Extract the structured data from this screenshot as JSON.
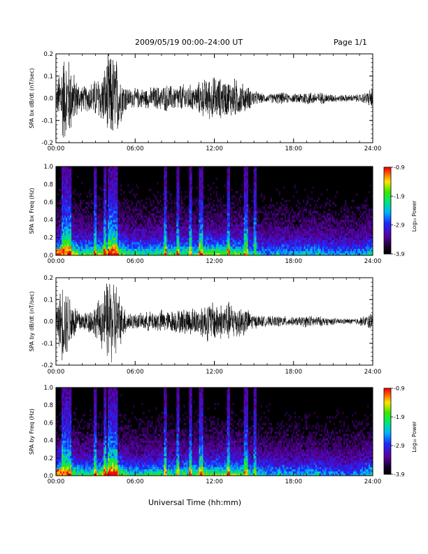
{
  "header": {
    "title": "2009/05/19  00:00–24:00 UT",
    "page": "Page 1/1"
  },
  "x_axis_label": "Universal Time (hh:mm)",
  "chart_data": [
    {
      "type": "line",
      "ylabel": "SPA bx dB/dt (nT/sec)",
      "xlim": [
        0,
        24
      ],
      "ylim": [
        -0.2,
        0.2
      ],
      "x_ticks": [
        "00:00",
        "06:00",
        "12:00",
        "18:00",
        "24:00"
      ],
      "y_ticks": [
        "0.2",
        "0.1",
        "0.0",
        "-0.1",
        "-0.2"
      ],
      "series": [
        {
          "x": [
            0,
            0.5,
            1,
            1.5,
            2,
            2.5,
            3,
            3.5,
            4,
            4.5,
            5,
            5.5,
            6,
            6.5,
            7,
            7.5,
            8,
            8.5,
            9,
            9.5,
            10,
            10.5,
            11,
            11.5,
            12,
            12.5,
            13,
            13.5,
            14,
            14.5,
            15,
            15.5,
            16,
            16.5,
            17,
            17.5,
            18,
            18.5,
            19,
            19.5,
            20,
            20.5,
            21,
            21.5,
            22,
            22.5,
            23,
            23.5,
            24
          ],
          "amplitude": [
            0.05,
            0.22,
            0.2,
            0.1,
            0.06,
            0.07,
            0.1,
            0.12,
            0.22,
            0.22,
            0.1,
            0.05,
            0.05,
            0.05,
            0.05,
            0.06,
            0.06,
            0.07,
            0.06,
            0.07,
            0.07,
            0.06,
            0.09,
            0.1,
            0.11,
            0.1,
            0.09,
            0.1,
            0.08,
            0.06,
            0.04,
            0.025,
            0.02,
            0.025,
            0.03,
            0.025,
            0.02,
            0.03,
            0.035,
            0.03,
            0.03,
            0.025,
            0.02,
            0.018,
            0.018,
            0.018,
            0.02,
            0.03,
            0.06
          ]
        }
      ]
    },
    {
      "type": "heatmap",
      "ylabel": "SPA bx Freq (Hz)",
      "xlim": [
        0,
        24
      ],
      "ylim": [
        0,
        1
      ],
      "x_ticks": [
        "00:00",
        "06:00",
        "12:00",
        "18:00",
        "24:00"
      ],
      "y_ticks": [
        "1.0",
        "0.8",
        "0.6",
        "0.4",
        "0.2",
        "0.0"
      ],
      "colorbar": {
        "label": "Log₁₀ Power",
        "min": -3.9,
        "max": -0.9,
        "ticks": [
          "-0.9",
          "-1.9",
          "-2.9",
          "-3.9"
        ]
      }
    },
    {
      "type": "line",
      "ylabel": "SPA by dB/dt (nT/sec)",
      "xlim": [
        0,
        24
      ],
      "ylim": [
        -0.2,
        0.2
      ],
      "x_ticks": [
        "00:00",
        "06:00",
        "12:00",
        "18:00",
        "24:00"
      ],
      "y_ticks": [
        "0.2",
        "0.1",
        "0.0",
        "-0.1",
        "-0.2"
      ],
      "series": [
        {
          "x": [
            0,
            0.5,
            1,
            1.5,
            2,
            2.5,
            3,
            3.5,
            4,
            4.5,
            5,
            5.5,
            6,
            6.5,
            7,
            7.5,
            8,
            8.5,
            9,
            9.5,
            10,
            10.5,
            11,
            11.5,
            12,
            12.5,
            13,
            13.5,
            14,
            14.5,
            15,
            15.5,
            16,
            16.5,
            17,
            17.5,
            18,
            18.5,
            19,
            19.5,
            20,
            20.5,
            21,
            21.5,
            22,
            22.5,
            23,
            23.5,
            24
          ],
          "amplitude": [
            0.06,
            0.2,
            0.15,
            0.08,
            0.05,
            0.06,
            0.08,
            0.14,
            0.22,
            0.22,
            0.09,
            0.05,
            0.04,
            0.04,
            0.05,
            0.05,
            0.06,
            0.05,
            0.06,
            0.06,
            0.07,
            0.07,
            0.08,
            0.1,
            0.1,
            0.09,
            0.1,
            0.09,
            0.08,
            0.06,
            0.035,
            0.03,
            0.025,
            0.025,
            0.03,
            0.025,
            0.02,
            0.025,
            0.03,
            0.028,
            0.025,
            0.02,
            0.018,
            0.015,
            0.015,
            0.015,
            0.02,
            0.03,
            0.05
          ]
        }
      ]
    },
    {
      "type": "heatmap",
      "ylabel": "SPA by Freq (Hz)",
      "xlim": [
        0,
        24
      ],
      "ylim": [
        0,
        1
      ],
      "x_ticks": [
        "00:00",
        "06:00",
        "12:00",
        "18:00",
        "24:00"
      ],
      "y_ticks": [
        "1.0",
        "0.8",
        "0.6",
        "0.4",
        "0.2",
        "0.0"
      ],
      "colorbar": {
        "label": "Log₁₀ Power",
        "min": -3.9,
        "max": -0.9,
        "ticks": [
          "-0.9",
          "-1.9",
          "-2.9",
          "-3.9"
        ]
      }
    }
  ]
}
